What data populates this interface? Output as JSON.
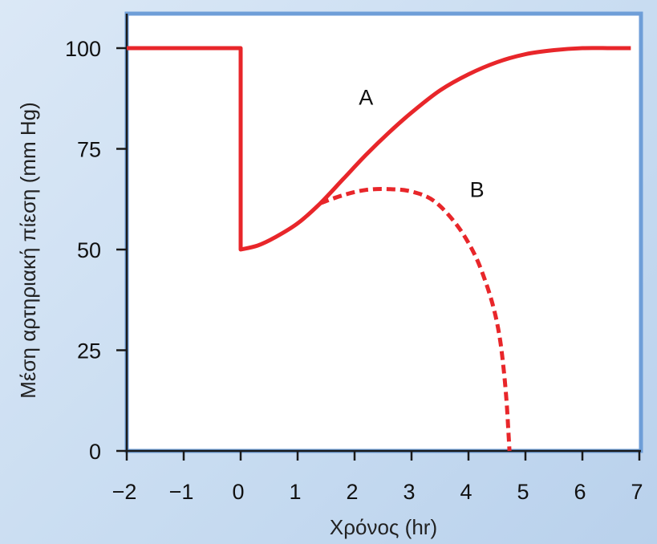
{
  "chart_data": {
    "type": "line",
    "xlabel": "Χρόνος (hr)",
    "ylabel": "Μέση αρτηριακή πίεση (mm Hg)",
    "xlim": [
      -2,
      7
    ],
    "ylim": [
      0,
      100
    ],
    "x_ticks": [
      -2,
      -1,
      0,
      1,
      2,
      3,
      4,
      5,
      6,
      7
    ],
    "x_tick_labels": [
      "−2",
      "−1",
      "0",
      "1",
      "2",
      "3",
      "4",
      "5",
      "6",
      "7"
    ],
    "y_ticks": [
      0,
      25,
      50,
      75,
      100
    ],
    "y_tick_labels": [
      "0",
      "25",
      "50",
      "75",
      "100"
    ],
    "grid": false,
    "legend": "none",
    "series": [
      {
        "name": "A",
        "style": "solid",
        "color": "#e8262a",
        "x": [
          -2,
          0,
          0,
          0.3,
          0.6,
          1.0,
          1.4,
          1.8,
          2.2,
          2.6,
          3.0,
          3.5,
          4.0,
          4.5,
          5.0,
          5.5,
          6.0,
          6.5,
          6.85
        ],
        "y": [
          100,
          100,
          50,
          51,
          53,
          56.5,
          61.5,
          67.5,
          73.5,
          79,
          84,
          89.5,
          93.5,
          96.5,
          98.5,
          99.5,
          100,
          100,
          100
        ]
      },
      {
        "name": "B",
        "style": "dashed",
        "color": "#e8262a",
        "x": [
          1.4,
          1.8,
          2.2,
          2.6,
          3.0,
          3.4,
          3.8,
          4.1,
          4.3,
          4.45,
          4.55,
          4.62,
          4.67,
          4.7,
          4.72
        ],
        "y": [
          61.5,
          63.5,
          64.8,
          65,
          64.4,
          62,
          56,
          49,
          42,
          35,
          28,
          20,
          12,
          5,
          0
        ]
      }
    ],
    "annotations": [
      {
        "text": "A",
        "x": 2.2,
        "y": 86
      },
      {
        "text": "B",
        "x": 4.15,
        "y": 63
      }
    ]
  }
}
